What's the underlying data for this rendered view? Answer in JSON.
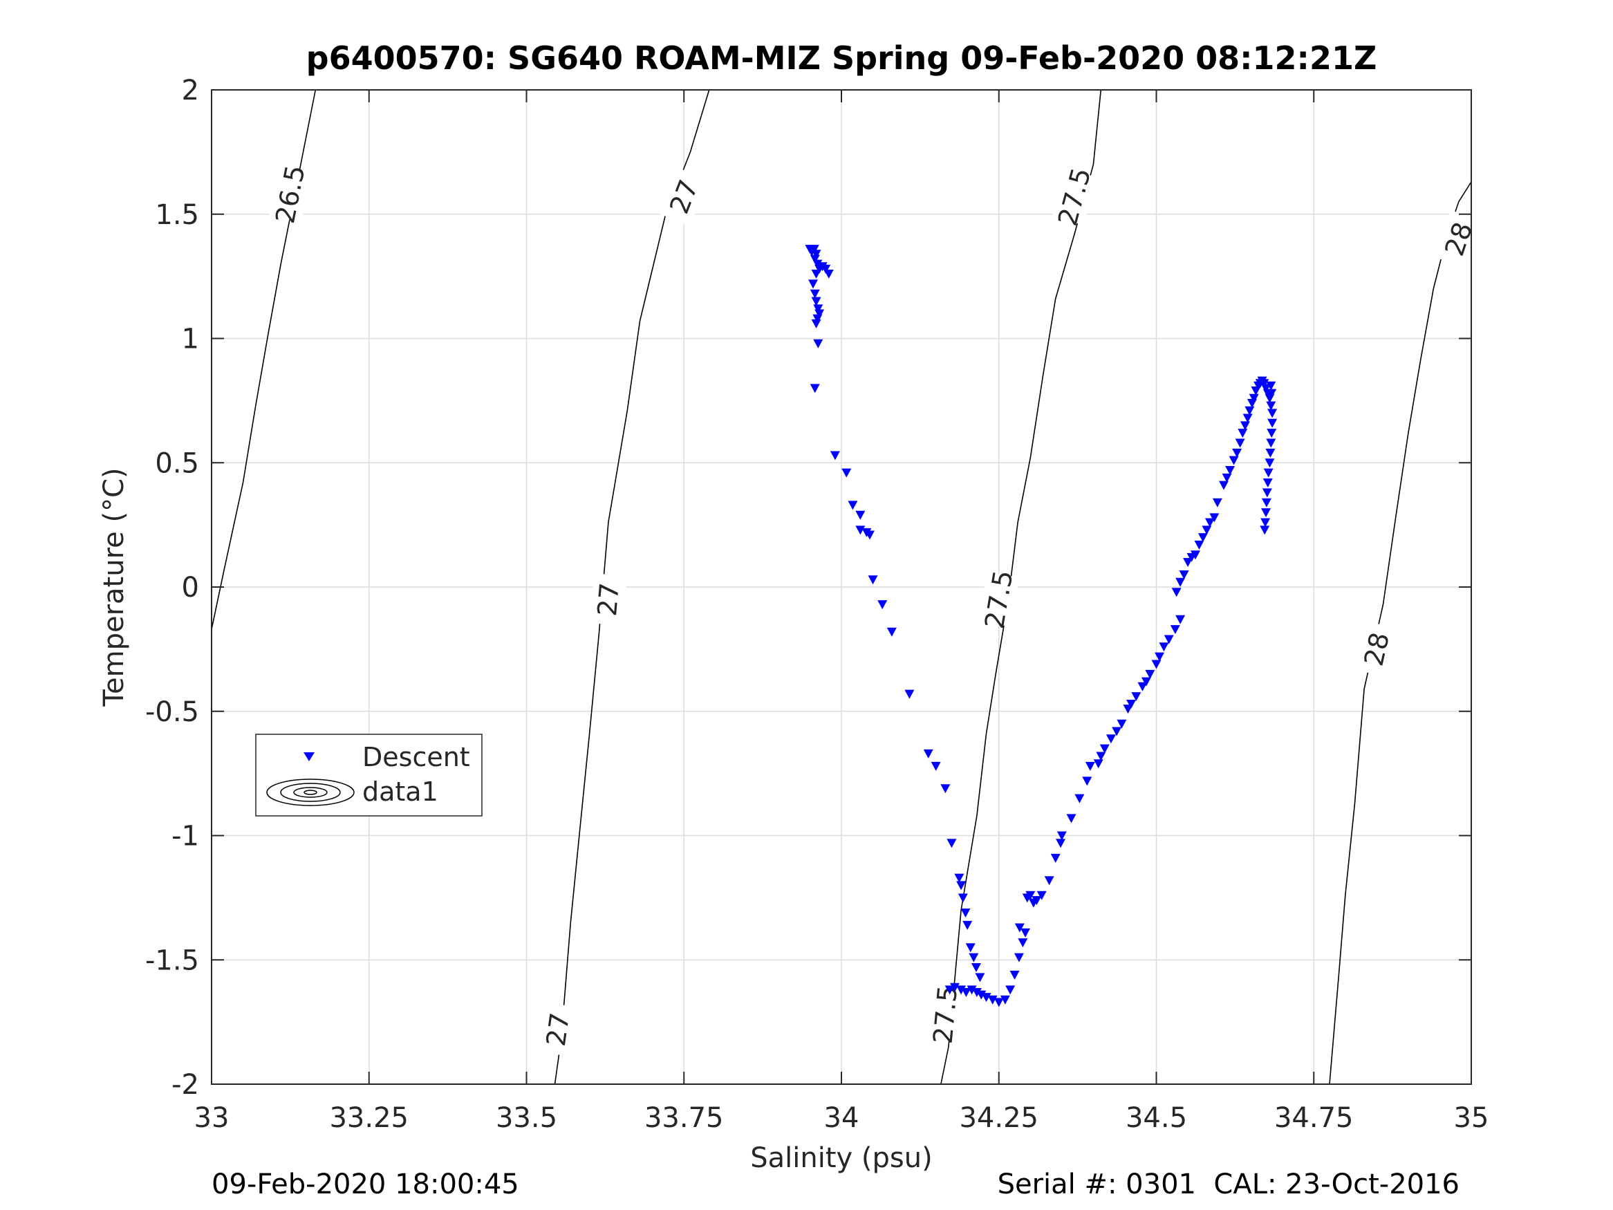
{
  "chart_data": {
    "type": "scatter",
    "title": "p6400570: SG640 ROAM-MIZ Spring 09-Feb-2020 08:12:21Z",
    "xlabel": "Salinity (psu)",
    "ylabel": "Temperature (°C)",
    "xlim": [
      33,
      35
    ],
    "ylim": [
      -2,
      2
    ],
    "x_ticks": [
      33,
      33.25,
      33.5,
      33.75,
      34,
      34.25,
      34.5,
      34.75,
      35
    ],
    "x_tick_labels": [
      "33",
      "33.25",
      "33.5",
      "33.75",
      "34",
      "34.25",
      "34.5",
      "34.75",
      "35"
    ],
    "y_ticks": [
      -2,
      -1.5,
      -1,
      -0.5,
      0,
      0.5,
      1,
      1.5,
      2
    ],
    "y_tick_labels": [
      "-2",
      "-1.5",
      "-1",
      "-0.5",
      "0",
      "0.5",
      "1",
      "1.5",
      "2"
    ],
    "grid": true,
    "legend_position": "middle-left",
    "legend": [
      "Descent",
      "data1"
    ],
    "series": [
      {
        "name": "Descent",
        "marker": "triangle-down",
        "color": "#0000ff",
        "points": [
          [
            33.95,
            1.36
          ],
          [
            33.953,
            1.35
          ],
          [
            33.957,
            1.36
          ],
          [
            33.96,
            1.34
          ],
          [
            33.958,
            1.32
          ],
          [
            33.962,
            1.3
          ],
          [
            33.965,
            1.28
          ],
          [
            33.97,
            1.29
          ],
          [
            33.975,
            1.28
          ],
          [
            33.98,
            1.26
          ],
          [
            33.96,
            1.26
          ],
          [
            33.955,
            1.22
          ],
          [
            33.958,
            1.18
          ],
          [
            33.96,
            1.15
          ],
          [
            33.963,
            1.12
          ],
          [
            33.965,
            1.1
          ],
          [
            33.962,
            1.08
          ],
          [
            33.96,
            1.06
          ],
          [
            33.963,
            0.98
          ],
          [
            33.958,
            0.8
          ],
          [
            33.99,
            0.53
          ],
          [
            34.008,
            0.46
          ],
          [
            34.018,
            0.33
          ],
          [
            34.03,
            0.29
          ],
          [
            34.03,
            0.23
          ],
          [
            34.04,
            0.22
          ],
          [
            34.045,
            0.21
          ],
          [
            34.05,
            0.03
          ],
          [
            34.065,
            -0.07
          ],
          [
            34.08,
            -0.18
          ],
          [
            34.108,
            -0.43
          ],
          [
            34.138,
            -0.67
          ],
          [
            34.15,
            -0.72
          ],
          [
            34.165,
            -0.81
          ],
          [
            34.175,
            -1.03
          ],
          [
            34.187,
            -1.17
          ],
          [
            34.19,
            -1.2
          ],
          [
            34.193,
            -1.25
          ],
          [
            34.197,
            -1.31
          ],
          [
            34.2,
            -1.36
          ],
          [
            34.205,
            -1.45
          ],
          [
            34.21,
            -1.49
          ],
          [
            34.214,
            -1.53
          ],
          [
            34.22,
            -1.57
          ],
          [
            34.172,
            -1.62
          ],
          [
            34.18,
            -1.61
          ],
          [
            34.19,
            -1.62
          ],
          [
            34.198,
            -1.63
          ],
          [
            34.207,
            -1.62
          ],
          [
            34.215,
            -1.63
          ],
          [
            34.222,
            -1.64
          ],
          [
            34.23,
            -1.65
          ],
          [
            34.24,
            -1.66
          ],
          [
            34.25,
            -1.67
          ],
          [
            34.26,
            -1.66
          ],
          [
            34.268,
            -1.62
          ],
          [
            34.275,
            -1.56
          ],
          [
            34.282,
            -1.49
          ],
          [
            34.288,
            -1.43
          ],
          [
            34.292,
            -1.39
          ],
          [
            34.283,
            -1.37
          ],
          [
            34.295,
            -1.25
          ],
          [
            34.3,
            -1.24
          ],
          [
            34.305,
            -1.27
          ],
          [
            34.31,
            -1.26
          ],
          [
            34.318,
            -1.24
          ],
          [
            34.33,
            -1.18
          ],
          [
            34.34,
            -1.09
          ],
          [
            34.348,
            -1.03
          ],
          [
            34.35,
            -1.0
          ],
          [
            34.365,
            -0.93
          ],
          [
            34.378,
            -0.85
          ],
          [
            34.39,
            -0.78
          ],
          [
            34.395,
            -0.72
          ],
          [
            34.408,
            -0.71
          ],
          [
            34.412,
            -0.68
          ],
          [
            34.418,
            -0.65
          ],
          [
            34.428,
            -0.61
          ],
          [
            34.437,
            -0.58
          ],
          [
            34.445,
            -0.55
          ],
          [
            34.455,
            -0.49
          ],
          [
            34.46,
            -0.47
          ],
          [
            34.468,
            -0.44
          ],
          [
            34.478,
            -0.4
          ],
          [
            34.484,
            -0.38
          ],
          [
            34.49,
            -0.35
          ],
          [
            34.5,
            -0.31
          ],
          [
            34.505,
            -0.28
          ],
          [
            34.512,
            -0.24
          ],
          [
            34.52,
            -0.21
          ],
          [
            34.53,
            -0.17
          ],
          [
            34.538,
            -0.13
          ],
          [
            34.532,
            -0.02
          ],
          [
            34.538,
            0.02
          ],
          [
            34.544,
            0.05
          ],
          [
            34.55,
            0.1
          ],
          [
            34.556,
            0.12
          ],
          [
            34.562,
            0.13
          ],
          [
            34.568,
            0.17
          ],
          [
            34.574,
            0.2
          ],
          [
            34.58,
            0.23
          ],
          [
            34.585,
            0.26
          ],
          [
            34.592,
            0.28
          ],
          [
            34.597,
            0.34
          ],
          [
            34.607,
            0.41
          ],
          [
            34.612,
            0.44
          ],
          [
            34.617,
            0.47
          ],
          [
            34.623,
            0.51
          ],
          [
            34.628,
            0.54
          ],
          [
            34.633,
            0.58
          ],
          [
            34.637,
            0.62
          ],
          [
            34.641,
            0.65
          ],
          [
            34.645,
            0.68
          ],
          [
            34.648,
            0.71
          ],
          [
            34.652,
            0.74
          ],
          [
            34.655,
            0.76
          ],
          [
            34.658,
            0.79
          ],
          [
            34.662,
            0.81
          ],
          [
            34.665,
            0.82
          ],
          [
            34.668,
            0.83
          ],
          [
            34.671,
            0.82
          ],
          [
            34.674,
            0.8
          ],
          [
            34.677,
            0.78
          ],
          [
            34.68,
            0.76
          ],
          [
            34.682,
            0.73
          ],
          [
            34.684,
            0.7
          ],
          [
            34.684,
            0.66
          ],
          [
            34.683,
            0.62
          ],
          [
            34.682,
            0.58
          ],
          [
            34.681,
            0.54
          ],
          [
            34.68,
            0.5
          ],
          [
            34.678,
            0.46
          ],
          [
            34.677,
            0.42
          ],
          [
            34.676,
            0.38
          ],
          [
            34.675,
            0.34
          ],
          [
            34.674,
            0.3
          ],
          [
            34.673,
            0.26
          ],
          [
            34.672,
            0.23
          ],
          [
            34.682,
            0.81
          ],
          [
            34.683,
            0.78
          ]
        ]
      },
      {
        "name": "data1",
        "contours": [
          {
            "label": "26.5",
            "points": [
              [
                33.0,
                -0.17
              ],
              [
                33.02,
                0.07
              ],
              [
                33.05,
                0.42
              ],
              [
                33.07,
                0.73
              ],
              [
                33.09,
                1.02
              ],
              [
                33.11,
                1.3
              ],
              [
                33.14,
                1.68
              ],
              [
                33.165,
                2.0
              ]
            ],
            "label_positions": [
              [
                33.125,
                1.58
              ]
            ]
          },
          {
            "label": "27",
            "points": [
              [
                33.545,
                -2.0
              ],
              [
                33.555,
                -1.82
              ],
              [
                33.57,
                -1.35
              ],
              [
                33.585,
                -0.97
              ],
              [
                33.6,
                -0.59
              ],
              [
                33.615,
                -0.19
              ],
              [
                33.63,
                0.26
              ],
              [
                33.66,
                0.71
              ],
              [
                33.68,
                1.07
              ],
              [
                33.72,
                1.49
              ],
              [
                33.76,
                1.75
              ],
              [
                33.79,
                2.0
              ]
            ],
            "label_positions": [
              [
                33.55,
                -1.78
              ],
              [
                33.63,
                -0.05
              ],
              [
                33.75,
                1.57
              ]
            ]
          },
          {
            "label": "27.5",
            "points": [
              [
                34.158,
                -2.0
              ],
              [
                34.17,
                -1.85
              ],
              [
                34.19,
                -1.3
              ],
              [
                34.215,
                -0.92
              ],
              [
                34.23,
                -0.59
              ],
              [
                34.245,
                -0.35
              ],
              [
                34.265,
                -0.05
              ],
              [
                34.28,
                0.26
              ],
              [
                34.3,
                0.52
              ],
              [
                34.32,
                0.85
              ],
              [
                34.34,
                1.16
              ],
              [
                34.37,
                1.42
              ],
              [
                34.4,
                1.7
              ],
              [
                34.412,
                2.0
              ]
            ],
            "label_positions": [
              [
                34.165,
                -1.72
              ],
              [
                34.25,
                -0.05
              ],
              [
                34.37,
                1.57
              ]
            ]
          },
          {
            "label": "28",
            "points": [
              [
                34.775,
                -2.0
              ],
              [
                34.79,
                -1.55
              ],
              [
                34.8,
                -1.24
              ],
              [
                34.815,
                -0.87
              ],
              [
                34.83,
                -0.41
              ],
              [
                34.86,
                -0.07
              ],
              [
                34.88,
                0.28
              ],
              [
                34.9,
                0.62
              ],
              [
                34.92,
                0.92
              ],
              [
                34.94,
                1.2
              ],
              [
                34.96,
                1.4
              ],
              [
                34.98,
                1.55
              ],
              [
                35.0,
                1.63
              ]
            ],
            "label_positions": [
              [
                34.85,
                -0.25
              ],
              [
                34.98,
                1.4
              ]
            ]
          }
        ]
      }
    ]
  },
  "footer": {
    "timestamp": "09-Feb-2020 18:00:45",
    "serial": "Serial #: 0301  CAL: 23-Oct-2016"
  }
}
